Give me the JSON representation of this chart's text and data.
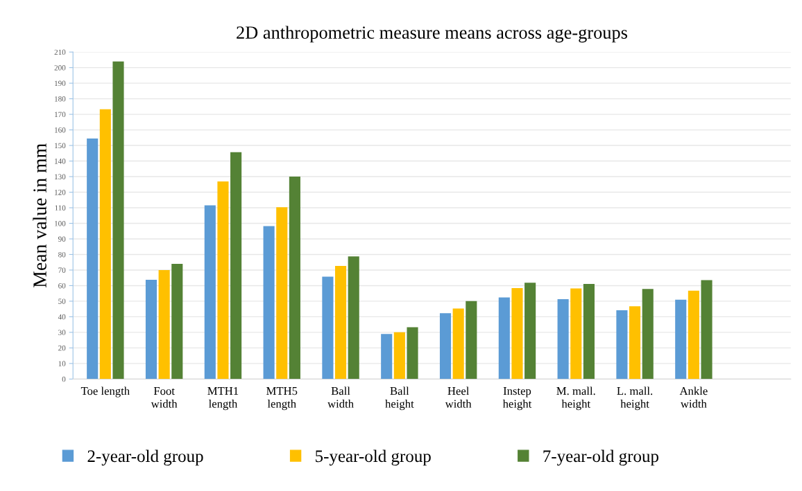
{
  "chart_data": {
    "type": "bar",
    "title": "2D anthropometric measure means across age-groups",
    "ylabel": "Mean value in mm",
    "categories": [
      "Toe length",
      "Foot\nwidth",
      "MTH1\nlength",
      "MTH5\nlength",
      "Ball\nwidth",
      "Ball\nheight",
      "Heel\nwidth",
      "Instep\nheight",
      "M. mall.\nheight",
      "L. mall.\nheight",
      "Ankle\nwidth"
    ],
    "series": [
      {
        "name": "2-year-old group",
        "color": "#5b9bd5",
        "values": [
          154.5,
          63.7,
          111.6,
          98.2,
          65.8,
          29,
          42.3,
          52.4,
          51.3,
          44.2,
          51
        ]
      },
      {
        "name": "5-year-old group",
        "color": "#ffc000",
        "values": [
          173.3,
          70,
          126.9,
          110.3,
          72.7,
          30.1,
          45.3,
          58.4,
          58.2,
          46.7,
          56.8
        ]
      },
      {
        "name": "7-year-old group",
        "color": "#548235",
        "values": [
          203.9,
          74,
          145.7,
          130,
          78.8,
          33.3,
          50.1,
          61.9,
          61.1,
          57.9,
          63.5
        ]
      }
    ],
    "ylim": [
      0,
      210
    ],
    "yticks": [
      0,
      10,
      20,
      30,
      40,
      50,
      60,
      70,
      80,
      90,
      100,
      110,
      120,
      130,
      140,
      150,
      160,
      170,
      180,
      190,
      200,
      210
    ],
    "grid": "y",
    "legend": "bottom"
  }
}
